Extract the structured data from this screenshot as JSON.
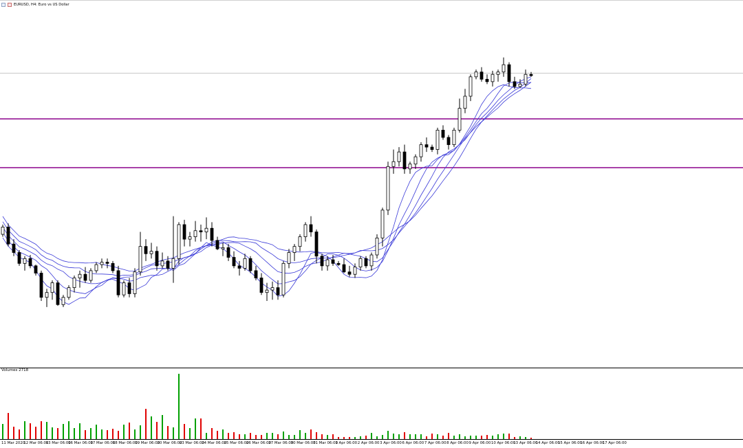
{
  "window": {
    "title": "EURUSD, H4:  Euro vs US Dollar",
    "icon": "candlestick-chart-icon"
  },
  "volume_panel": {
    "label": "Volumes 2718"
  },
  "x_axis": {
    "labels": [
      "11 Mar 2020",
      "12 Mar 06:00",
      "13 Mar 06:00",
      "16 Mar 06:00",
      "17 Mar 06:00",
      "18 Mar 06:00",
      "19 Mar 06:00",
      "20 Mar 06:00",
      "23 Mar 06:00",
      "24 Mar 06:00",
      "25 Mar 06:00",
      "26 Mar 06:00",
      "27 Mar 06:00",
      "30 Mar 06:00",
      "31 Mar 06:00",
      "1 Apr 06:00",
      "2 Apr 06:00",
      "3 Apr 06:00",
      "6 Apr 06:00",
      "7 Apr 06:00",
      "8 Apr 06:00",
      "9 Apr 06:00",
      "10 Apr 06:00",
      "13 Apr 06:00",
      "14 Apr 06:00",
      "15 Apr 06:00",
      "16 Apr 06:00",
      "17 Apr 06:00"
    ]
  },
  "colors": {
    "bull_body": "#ffffff",
    "bear_body": "#000000",
    "ma_lines": "#3a3ad8",
    "horizontal_levels": "#8b008b",
    "volume_up": "#00a000",
    "volume_down": "#e00000"
  },
  "chart_data": {
    "type": "candlestick",
    "symbol": "EURUSD",
    "timeframe": "H4",
    "price_scale": "relative units (no price axis shown in screenshot)",
    "candles": [
      [
        110,
        118,
        108,
        116
      ],
      [
        116,
        119,
        100,
        102
      ],
      [
        102,
        106,
        92,
        95
      ],
      [
        95,
        97,
        84,
        86
      ],
      [
        86,
        92,
        80,
        90
      ],
      [
        90,
        93,
        82,
        84
      ],
      [
        84,
        85,
        76,
        78
      ],
      [
        78,
        80,
        55,
        58
      ],
      [
        58,
        65,
        50,
        62
      ],
      [
        62,
        72,
        56,
        70
      ],
      [
        70,
        72,
        51,
        52
      ],
      [
        52,
        60,
        50,
        58
      ],
      [
        58,
        68,
        56,
        66
      ],
      [
        66,
        76,
        62,
        74
      ],
      [
        74,
        80,
        66,
        77
      ],
      [
        77,
        83,
        70,
        72
      ],
      [
        72,
        82,
        70,
        80
      ],
      [
        80,
        87,
        78,
        85
      ],
      [
        85,
        90,
        82,
        87
      ],
      [
        87,
        90,
        82,
        86
      ],
      [
        86,
        88,
        78,
        80
      ],
      [
        80,
        84,
        58,
        60
      ],
      [
        60,
        72,
        58,
        70
      ],
      [
        70,
        74,
        58,
        61
      ],
      [
        61,
        82,
        58,
        79
      ],
      [
        79,
        112,
        76,
        100
      ],
      [
        100,
        106,
        88,
        94
      ],
      [
        94,
        103,
        90,
        96
      ],
      [
        96,
        100,
        80,
        84
      ],
      [
        84,
        95,
        82,
        88
      ],
      [
        88,
        92,
        80,
        82
      ],
      [
        82,
        125,
        70,
        90
      ],
      [
        90,
        120,
        85,
        118
      ],
      [
        118,
        122,
        100,
        106
      ],
      [
        106,
        112,
        100,
        108
      ],
      [
        108,
        121,
        104,
        113
      ],
      [
        113,
        118,
        104,
        112
      ],
      [
        112,
        124,
        106,
        115
      ],
      [
        115,
        120,
        100,
        105
      ],
      [
        105,
        108,
        97,
        98
      ],
      [
        98,
        103,
        92,
        99
      ],
      [
        99,
        102,
        88,
        91
      ],
      [
        91,
        96,
        82,
        84
      ],
      [
        84,
        88,
        76,
        82
      ],
      [
        82,
        94,
        80,
        90
      ],
      [
        90,
        92,
        78,
        80
      ],
      [
        80,
        84,
        72,
        74
      ],
      [
        74,
        78,
        60,
        62
      ],
      [
        62,
        70,
        55,
        64
      ],
      [
        64,
        71,
        56,
        66
      ],
      [
        66,
        72,
        56,
        60
      ],
      [
        60,
        88,
        58,
        86
      ],
      [
        86,
        98,
        82,
        95
      ],
      [
        95,
        102,
        88,
        100
      ],
      [
        100,
        110,
        96,
        108
      ],
      [
        108,
        120,
        104,
        118
      ],
      [
        118,
        125,
        108,
        112
      ],
      [
        112,
        114,
        86,
        92
      ],
      [
        92,
        94,
        80,
        84
      ],
      [
        84,
        92,
        80,
        89
      ],
      [
        89,
        93,
        84,
        86
      ],
      [
        86,
        88,
        84,
        85
      ],
      [
        85,
        90,
        78,
        79
      ],
      [
        79,
        84,
        75,
        77
      ],
      [
        77,
        86,
        74,
        83
      ],
      [
        83,
        92,
        80,
        90
      ],
      [
        90,
        92,
        82,
        84
      ],
      [
        84,
        95,
        80,
        93
      ],
      [
        93,
        110,
        90,
        107
      ],
      [
        107,
        132,
        100,
        130
      ],
      [
        130,
        170,
        126,
        166
      ],
      [
        166,
        180,
        160,
        170
      ],
      [
        170,
        182,
        166,
        178
      ],
      [
        178,
        184,
        160,
        164
      ],
      [
        164,
        170,
        160,
        168
      ],
      [
        168,
        176,
        164,
        174
      ],
      [
        174,
        186,
        170,
        184
      ],
      [
        184,
        190,
        178,
        182
      ],
      [
        182,
        184,
        178,
        180
      ],
      [
        180,
        198,
        176,
        196
      ],
      [
        196,
        200,
        188,
        190
      ],
      [
        190,
        192,
        180,
        184
      ],
      [
        184,
        198,
        182,
        196
      ],
      [
        196,
        222,
        194,
        214
      ],
      [
        214,
        230,
        210,
        224
      ],
      [
        224,
        242,
        220,
        240
      ],
      [
        240,
        246,
        238,
        244
      ],
      [
        244,
        248,
        236,
        238
      ],
      [
        238,
        242,
        234,
        236
      ],
      [
        236,
        245,
        232,
        242
      ],
      [
        242,
        246,
        236,
        244
      ],
      [
        244,
        256,
        240,
        250
      ],
      [
        250,
        252,
        232,
        236
      ],
      [
        236,
        240,
        230,
        232
      ],
      [
        232,
        238,
        231,
        234
      ],
      [
        234,
        246,
        232,
        242
      ],
      [
        242,
        244,
        240,
        241
      ]
    ],
    "volume_heights": [
      22,
      38,
      18,
      14,
      26,
      23,
      18,
      26,
      25,
      17,
      16,
      22,
      26,
      16,
      23,
      13,
      16,
      21,
      14,
      13,
      15,
      12,
      21,
      24,
      14,
      20,
      44,
      33,
      25,
      35,
      19,
      17,
      95,
      22,
      16,
      30,
      30,
      9,
      16,
      12,
      14,
      9,
      10,
      7,
      7,
      9,
      6,
      6,
      9,
      9,
      7,
      11,
      6,
      6,
      13,
      9,
      14,
      10,
      7,
      6,
      7,
      3,
      3,
      3,
      3,
      4,
      5,
      9,
      4,
      6,
      12,
      8,
      7,
      10,
      7,
      7,
      7,
      4,
      8,
      7,
      5,
      9,
      5,
      7,
      4,
      5,
      5,
      5,
      6,
      5,
      7,
      8,
      8,
      3,
      4,
      3,
      2
    ],
    "moving_averages": 5,
    "horizontal_levels": 2
  }
}
